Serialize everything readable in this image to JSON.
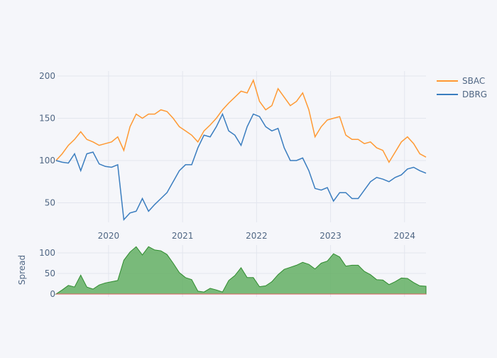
{
  "chart_data": [
    {
      "type": "line",
      "title": "",
      "xlabel": "",
      "ylabel": "",
      "x_ticks": [
        "2020",
        "2021",
        "2022",
        "2023",
        "2024"
      ],
      "y_ticks": [
        "50",
        "100",
        "150",
        "200"
      ],
      "ylim": [
        26.5,
        206
      ],
      "xlim": [
        "2019-04",
        "2024-04"
      ],
      "grid": true,
      "legend_position": "top-right",
      "x": [
        "2019-04",
        "2019-05",
        "2019-06",
        "2019-07",
        "2019-08",
        "2019-09",
        "2019-10",
        "2019-11",
        "2019-12",
        "2020-01",
        "2020-02",
        "2020-03",
        "2020-04",
        "2020-05",
        "2020-06",
        "2020-07",
        "2020-08",
        "2020-09",
        "2020-10",
        "2020-11",
        "2020-12",
        "2021-01",
        "2021-02",
        "2021-03",
        "2021-04",
        "2021-05",
        "2021-06",
        "2021-07",
        "2021-08",
        "2021-09",
        "2021-10",
        "2021-11",
        "2021-12",
        "2022-01",
        "2022-02",
        "2022-03",
        "2022-04",
        "2022-05",
        "2022-06",
        "2022-07",
        "2022-08",
        "2022-09",
        "2022-10",
        "2022-11",
        "2022-12",
        "2023-01",
        "2023-02",
        "2023-03",
        "2023-04",
        "2023-05",
        "2023-06",
        "2023-07",
        "2023-08",
        "2023-09",
        "2023-10",
        "2023-11",
        "2023-12",
        "2024-01",
        "2024-02",
        "2024-03",
        "2024-04"
      ],
      "series": [
        {
          "name": "SBAC",
          "color": "#ff9933",
          "values": [
            100,
            108,
            118,
            125,
            134,
            125,
            122,
            118,
            120,
            122,
            128,
            112,
            140,
            155,
            150,
            155,
            155,
            160,
            158,
            150,
            140,
            135,
            130,
            122,
            135,
            142,
            150,
            160,
            168,
            175,
            182,
            180,
            195,
            170,
            160,
            165,
            185,
            175,
            165,
            170,
            180,
            160,
            128,
            140,
            148,
            150,
            152,
            130,
            125,
            125,
            120,
            122,
            115,
            112,
            98,
            110,
            122,
            128,
            120,
            108,
            104
          ]
        },
        {
          "name": "DBRG",
          "color": "#3a7dbf",
          "values": [
            100,
            98,
            97,
            108,
            88,
            108,
            110,
            96,
            93,
            92,
            95,
            30,
            38,
            40,
            55,
            40,
            48,
            55,
            62,
            75,
            88,
            95,
            95,
            115,
            130,
            128,
            140,
            155,
            135,
            130,
            118,
            140,
            155,
            152,
            140,
            135,
            138,
            115,
            100,
            100,
            103,
            88,
            67,
            65,
            68,
            52,
            62,
            62,
            55,
            55,
            65,
            75,
            80,
            78,
            75,
            80,
            83,
            90,
            92,
            88,
            85
          ]
        }
      ]
    },
    {
      "type": "area",
      "title": "",
      "xlabel": "",
      "ylabel": "Spread",
      "y_ticks": [
        "0",
        "50",
        "100"
      ],
      "ylim": [
        0,
        120
      ],
      "grid": true,
      "definition": "SBAC - DBRG",
      "positive_color": "#5aab5a",
      "negative_color": "#e06060"
    }
  ]
}
